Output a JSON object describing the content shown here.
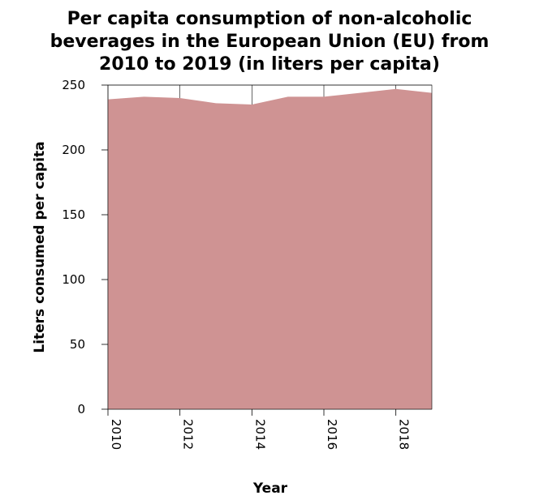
{
  "chart_data": {
    "type": "area",
    "title_lines": [
      "Per capita consumption of non-alcoholic",
      "beverages in the European Union (EU) from",
      "2010 to 2019 (in liters per capita)"
    ],
    "xlabel": "Year",
    "ylabel": "Liters consumed per capita",
    "x": [
      2010,
      2011,
      2012,
      2013,
      2014,
      2015,
      2016,
      2017,
      2018,
      2019
    ],
    "series": [
      {
        "values": [
          239,
          241,
          240,
          236,
          235,
          241,
          241,
          244,
          247,
          244
        ]
      }
    ],
    "xlim": [
      2010,
      2019
    ],
    "ylim": [
      0,
      250
    ],
    "xticks": [
      "2010",
      "2012",
      "2014",
      "2016",
      "2018"
    ],
    "yticks": [
      "0",
      "50",
      "100",
      "150",
      "200",
      "250"
    ],
    "grid": true,
    "fill_color": "#cf9393"
  }
}
